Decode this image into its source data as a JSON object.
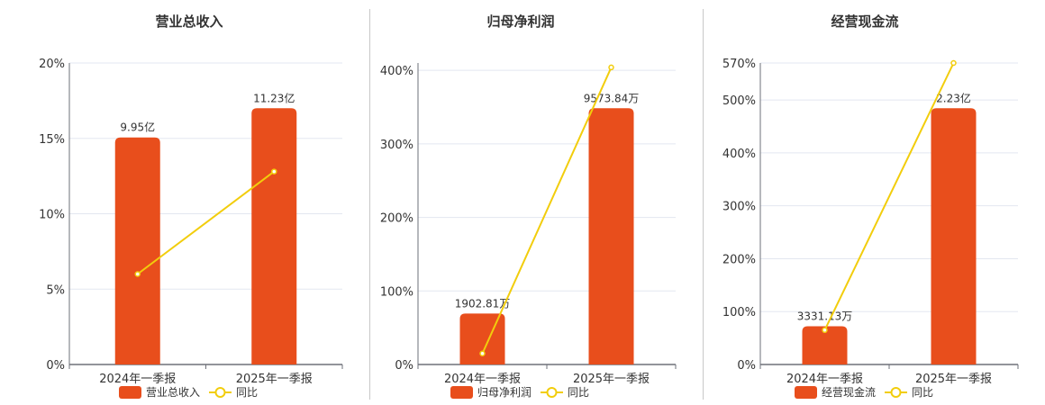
{
  "colors": {
    "bar": "#e84e1c",
    "line": "#f2cd0c",
    "grid": "#e3e7f0",
    "axis": "#6e7079",
    "text": "#333333"
  },
  "chart_data": [
    {
      "type": "bar+line",
      "title": "营业总收入",
      "categories": [
        "2024年一季报",
        "2025年一季报"
      ],
      "bar_series": {
        "name": "营业总收入",
        "values": [
          9.95,
          11.23
        ],
        "unit": "亿",
        "labels": [
          "9.95亿",
          "11.23亿"
        ]
      },
      "line_series": {
        "name": "同比",
        "values": [
          6.0,
          12.8
        ],
        "unit": "%"
      },
      "y_ticks": [
        "0%",
        "5%",
        "10%",
        "15%",
        "20%"
      ],
      "y_tick_values": [
        0,
        5,
        10,
        15,
        20
      ],
      "ylim": [
        0,
        20
      ],
      "grid": true,
      "legend": "bottom"
    },
    {
      "type": "bar+line",
      "title": "归母净利润",
      "categories": [
        "2024年一季报",
        "2025年一季报"
      ],
      "bar_series": {
        "name": "归母净利润",
        "values": [
          1902.81,
          9573.84
        ],
        "unit": "万",
        "labels": [
          "1902.81万",
          "9573.84万"
        ]
      },
      "line_series": {
        "name": "同比",
        "values": [
          15,
          404
        ],
        "unit": "%"
      },
      "y_ticks": [
        "0%",
        "100%",
        "200%",
        "300%",
        "400%"
      ],
      "y_tick_values": [
        0,
        100,
        200,
        300,
        400
      ],
      "ylim": [
        0,
        410
      ],
      "grid": true,
      "legend": "bottom"
    },
    {
      "type": "bar+line",
      "title": "经营现金流",
      "categories": [
        "2024年一季报",
        "2025年一季报"
      ],
      "bar_series": {
        "name": "经营现金流",
        "values": [
          3331.13,
          22300
        ],
        "unit": "万",
        "labels": [
          "3331.13万",
          "2.23亿"
        ]
      },
      "line_series": {
        "name": "同比",
        "values": [
          65,
          570
        ],
        "unit": "%"
      },
      "y_ticks": [
        "0%",
        "100%",
        "200%",
        "300%",
        "400%",
        "500%",
        "570%"
      ],
      "y_tick_values": [
        0,
        100,
        200,
        300,
        400,
        500,
        570
      ],
      "ylim": [
        0,
        570
      ],
      "grid": true,
      "legend": "bottom"
    }
  ]
}
